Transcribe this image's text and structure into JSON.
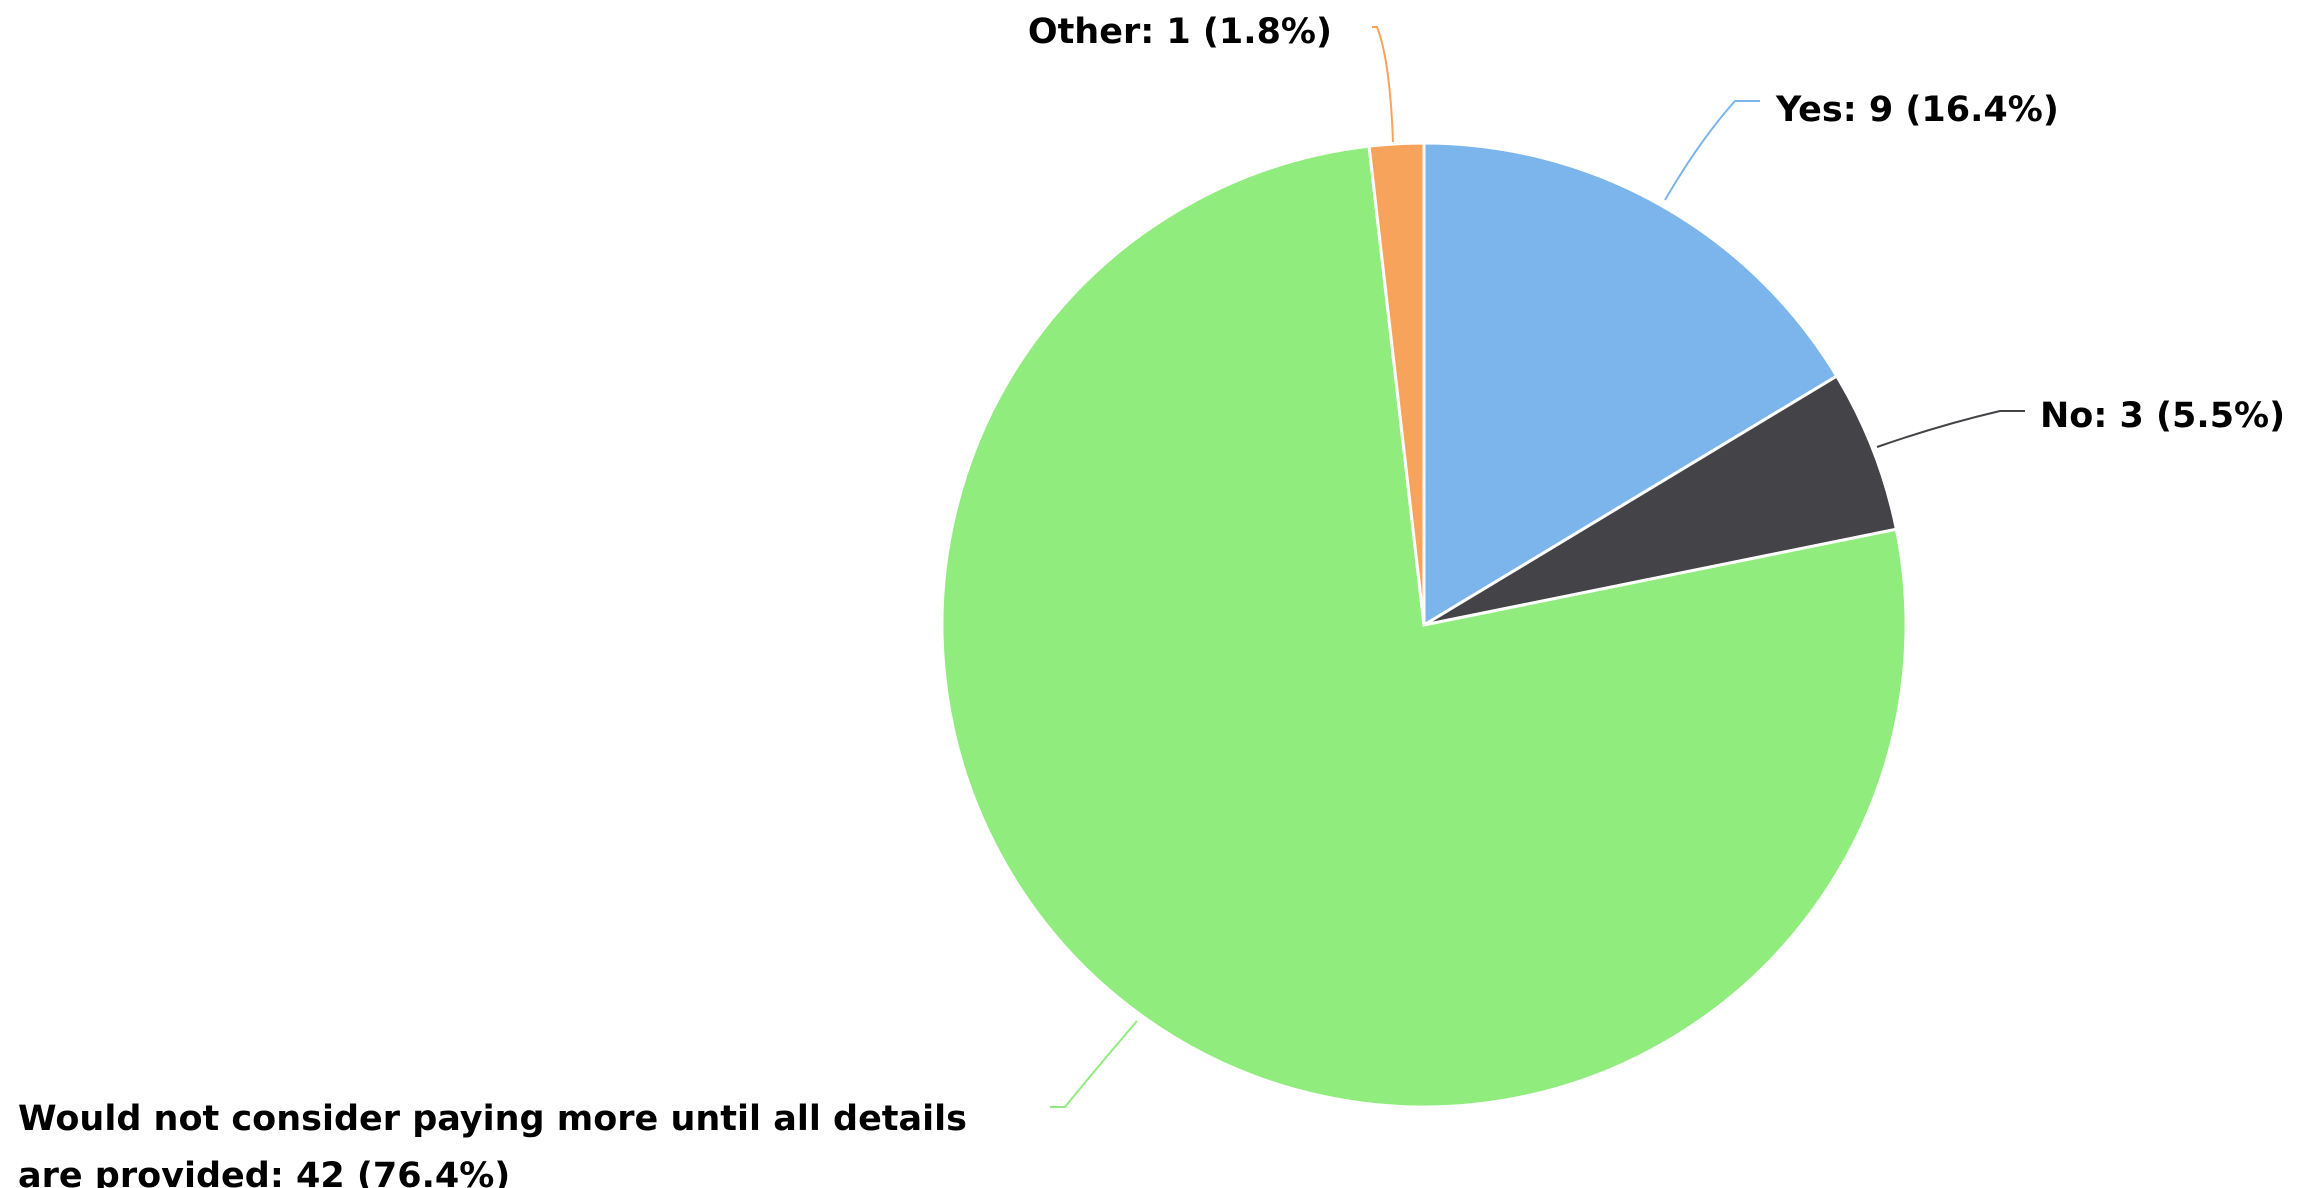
{
  "chart_data": {
    "type": "pie",
    "values": [
      9,
      3,
      42,
      1
    ],
    "value_labels": [
      [
        "Yes: 9 (16.4%)"
      ],
      [
        "No: 3 (5.5%)"
      ],
      [
        "Would not consider paying more until all details",
        "are provided: 42 (76.4%)"
      ],
      [
        "Other: 1 (1.8%)"
      ]
    ],
    "colors": [
      "#7cb5ec",
      "#434348",
      "#90ed7d",
      "#f7a35c"
    ]
  }
}
